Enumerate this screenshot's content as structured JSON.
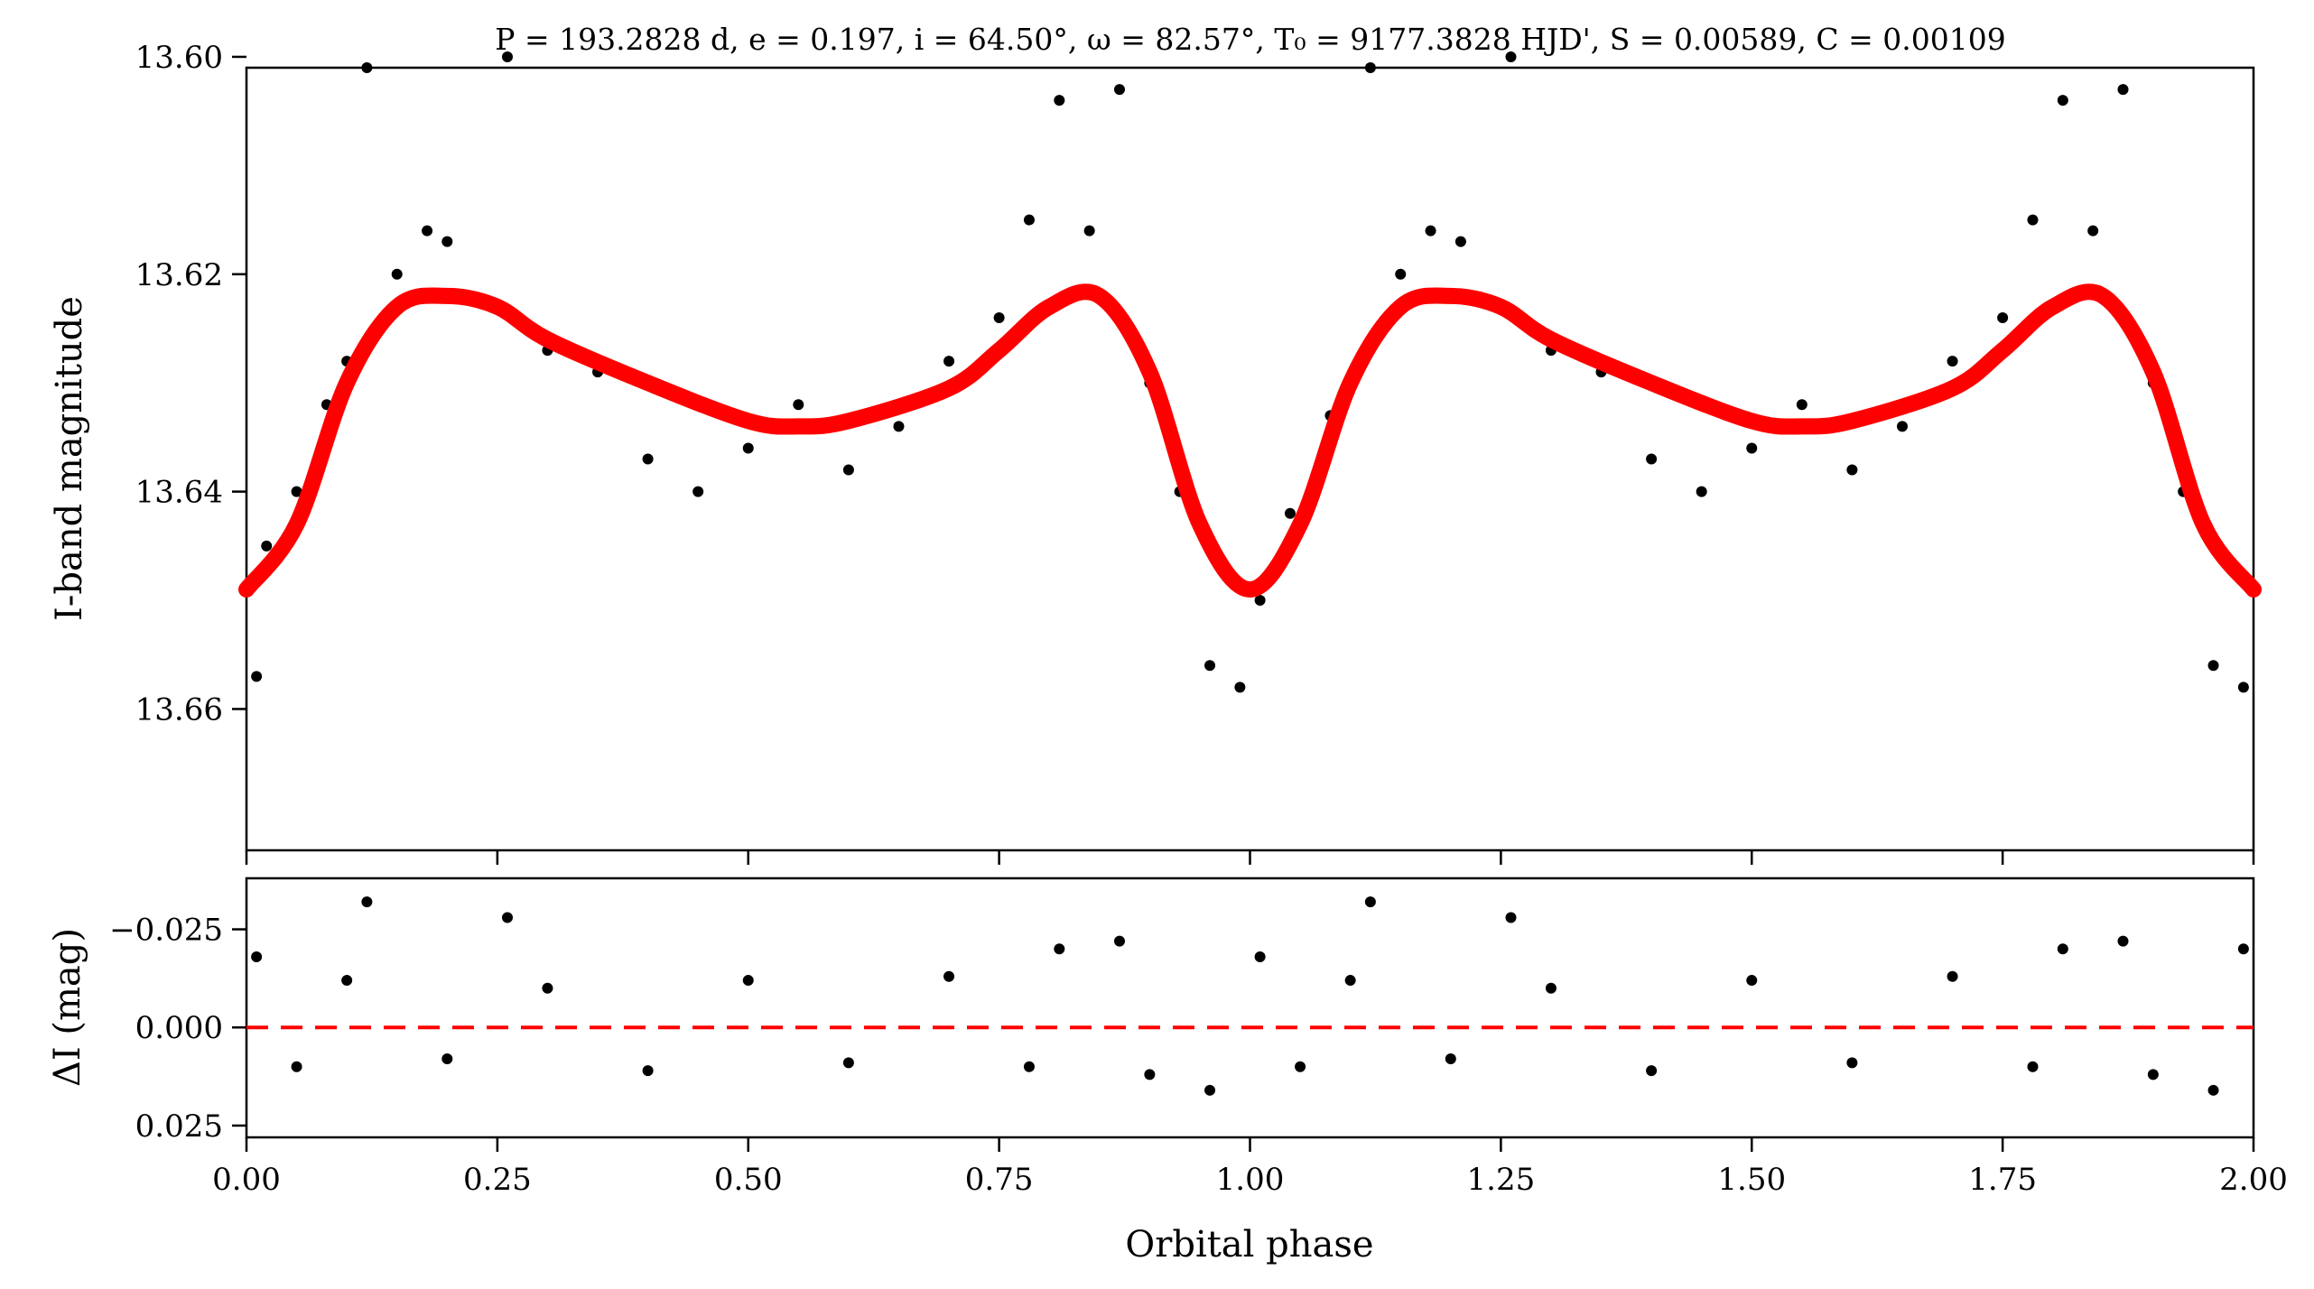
{
  "chart_data": [
    {
      "type": "scatter",
      "title": "P = 193.2828 d, e = 0.197, i = 64.50°, ω = 82.57°, T₀ = 9177.3828 HJD', S = 0.00589, C = 0.00109",
      "xlabel": "",
      "ylabel": "I-band magnitude",
      "xlim": [
        0.0,
        2.0
      ],
      "ylim": [
        13.673,
        13.601
      ],
      "y_inverted": true,
      "yticks": [
        "13.60",
        "13.62",
        "13.64",
        "13.66"
      ],
      "grid": false,
      "colors": {
        "points": "#000000",
        "model": "#ff0000"
      },
      "series": [
        {
          "kind": "model-curve",
          "x": [
            0.0,
            0.05,
            0.1,
            0.15,
            0.2,
            0.25,
            0.3,
            0.4,
            0.5,
            0.55,
            0.6,
            0.7,
            0.75,
            0.8,
            0.85,
            0.9,
            0.95,
            1.0,
            1.05,
            1.1,
            1.15,
            1.2,
            1.25,
            1.3,
            1.4,
            1.5,
            1.55,
            1.6,
            1.7,
            1.75,
            1.8,
            1.85,
            1.9,
            1.95,
            2.0
          ],
          "y": [
            13.649,
            13.643,
            13.63,
            13.623,
            13.622,
            13.623,
            13.626,
            13.63,
            13.6335,
            13.634,
            13.6335,
            13.6305,
            13.627,
            13.623,
            13.622,
            13.629,
            13.643,
            13.649,
            13.643,
            13.63,
            13.623,
            13.622,
            13.623,
            13.626,
            13.63,
            13.6335,
            13.634,
            13.6335,
            13.6305,
            13.627,
            13.623,
            13.622,
            13.629,
            13.643,
            13.649
          ]
        },
        {
          "kind": "observations",
          "x": [
            0.01,
            0.02,
            0.05,
            0.08,
            0.1,
            0.12,
            0.15,
            0.18,
            0.2,
            0.22,
            0.26,
            0.3,
            0.35,
            0.4,
            0.45,
            0.5,
            0.55,
            0.6,
            0.65,
            0.7,
            0.75,
            0.78,
            0.81,
            0.84,
            0.87,
            0.9,
            0.93,
            0.96,
            0.99,
            1.01,
            1.04,
            1.08,
            1.12,
            1.15,
            1.18,
            1.21,
            1.26,
            1.3,
            1.35,
            1.4,
            1.45,
            1.5,
            1.55,
            1.6,
            1.65,
            1.7,
            1.75,
            1.78,
            1.81,
            1.84,
            1.87,
            1.9,
            1.93,
            1.96,
            1.99
          ],
          "y": [
            13.657,
            13.645,
            13.64,
            13.632,
            13.628,
            13.601,
            13.62,
            13.616,
            13.617,
            13.622,
            13.6,
            13.627,
            13.629,
            13.637,
            13.64,
            13.636,
            13.632,
            13.638,
            13.634,
            13.628,
            13.624,
            13.615,
            13.604,
            13.616,
            13.603,
            13.63,
            13.64,
            13.656,
            13.658,
            13.65,
            13.642,
            13.633,
            13.601,
            13.62,
            13.616,
            13.617,
            13.6,
            13.627,
            13.629,
            13.637,
            13.64,
            13.636,
            13.632,
            13.638,
            13.634,
            13.628,
            13.624,
            13.615,
            13.604,
            13.616,
            13.603,
            13.63,
            13.64,
            13.656,
            13.658
          ]
        }
      ]
    },
    {
      "type": "scatter",
      "title": "",
      "xlabel": "Orbital phase",
      "ylabel": "ΔI (mag)",
      "xlim": [
        0.0,
        2.0
      ],
      "ylim": [
        0.028,
        -0.038
      ],
      "y_inverted": true,
      "yticks": [
        "−0.025",
        "0.000",
        "0.025"
      ],
      "xticks": [
        "0.00",
        "0.25",
        "0.50",
        "0.75",
        "1.00",
        "1.25",
        "1.50",
        "1.75",
        "2.00"
      ],
      "grid": false,
      "colors": {
        "points": "#000000",
        "zero-line": "#ff0000"
      },
      "series": [
        {
          "kind": "zero-line",
          "y": 0.0
        },
        {
          "kind": "residuals",
          "x": [
            0.01,
            0.05,
            0.1,
            0.12,
            0.2,
            0.26,
            0.3,
            0.4,
            0.5,
            0.6,
            0.7,
            0.78,
            0.81,
            0.87,
            0.9,
            0.96,
            1.01,
            1.05,
            1.1,
            1.12,
            1.2,
            1.26,
            1.3,
            1.4,
            1.5,
            1.6,
            1.7,
            1.78,
            1.81,
            1.87,
            1.9,
            1.96,
            1.99
          ],
          "y": [
            -0.018,
            0.01,
            -0.012,
            -0.032,
            0.008,
            -0.028,
            -0.01,
            0.011,
            -0.012,
            0.009,
            -0.013,
            0.01,
            -0.02,
            -0.022,
            0.012,
            0.016,
            -0.018,
            0.01,
            -0.012,
            -0.032,
            0.008,
            -0.028,
            -0.01,
            0.011,
            -0.012,
            0.009,
            -0.013,
            0.01,
            -0.02,
            -0.022,
            0.012,
            0.016,
            -0.02
          ]
        }
      ]
    }
  ]
}
